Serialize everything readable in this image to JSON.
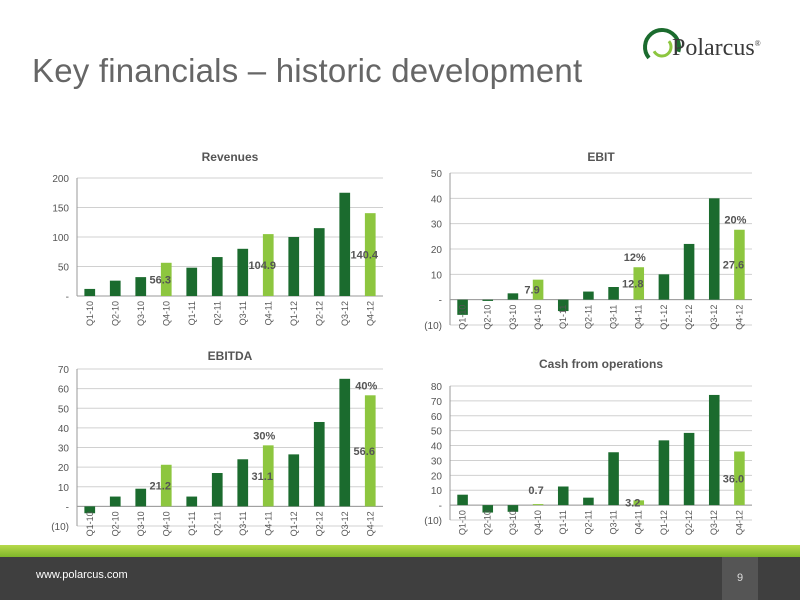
{
  "page": {
    "title": "Key financials – historic development",
    "logo_text": "Polarcus",
    "logo_mark": "®",
    "footer_url": "www.polarcus.com",
    "page_number": "9"
  },
  "colors": {
    "dark_green": "#1b6b2e",
    "light_green": "#8dc63f",
    "grid": "#d0d0d0",
    "footer_dark": "#3f3f3f"
  },
  "chart_data": [
    {
      "type": "bar",
      "title": "Revenues",
      "categories": [
        "Q1-10",
        "Q2-10",
        "Q3-10",
        "Q4-10",
        "Q1-11",
        "Q2-11",
        "Q3-11",
        "Q4-11",
        "Q1-12",
        "Q2-12",
        "Q3-12",
        "Q4-12"
      ],
      "values": [
        12,
        26,
        32,
        56.3,
        48,
        66,
        80,
        104.9,
        100,
        115,
        175,
        140.4
      ],
      "highlight": [
        3,
        7,
        11
      ],
      "ylim": [
        0,
        200
      ],
      "yticks": [
        0,
        50,
        100,
        150,
        200
      ],
      "ytick_labels": [
        "-",
        "50",
        "100",
        "150",
        "200"
      ],
      "value_labels": [
        {
          "index": 3,
          "text": "56.3"
        },
        {
          "index": 7,
          "text": "104.9"
        },
        {
          "index": 11,
          "text": "140.4"
        }
      ],
      "pct_labels": []
    },
    {
      "type": "bar",
      "title": "EBIT",
      "categories": [
        "Q1-10",
        "Q2-10",
        "Q3-10",
        "Q4-10",
        "Q1-11",
        "Q2-11",
        "Q3-11",
        "Q4-11",
        "Q1-12",
        "Q2-12",
        "Q3-12",
        "Q4-12"
      ],
      "values": [
        -6,
        -0.5,
        2.5,
        7.9,
        -4.5,
        3.2,
        5,
        12.8,
        10,
        22,
        40,
        27.6
      ],
      "highlight": [
        3,
        7,
        11
      ],
      "ylim": [
        -10,
        50
      ],
      "yticks": [
        -10,
        0,
        10,
        20,
        30,
        40,
        50
      ],
      "ytick_labels": [
        "(10)",
        "-",
        "10",
        "20",
        "30",
        "40",
        "50"
      ],
      "value_labels": [
        {
          "index": 3,
          "text": "7.9"
        },
        {
          "index": 7,
          "text": "12.8"
        },
        {
          "index": 11,
          "text": "27.6"
        }
      ],
      "pct_labels": [
        {
          "index": 7,
          "text": "12%"
        },
        {
          "index": 11,
          "text": "20%"
        }
      ]
    },
    {
      "type": "bar",
      "title": "EBITDA",
      "categories": [
        "Q1-10",
        "Q2-10",
        "Q3-10",
        "Q4-10",
        "Q1-11",
        "Q2-11",
        "Q3-11",
        "Q4-11",
        "Q1-12",
        "Q2-12",
        "Q3-12",
        "Q4-12"
      ],
      "values": [
        -3.5,
        5,
        9,
        21.2,
        5,
        17,
        24,
        31.1,
        26.5,
        43,
        65,
        56.6
      ],
      "highlight": [
        3,
        7,
        11
      ],
      "ylim": [
        -10,
        70
      ],
      "yticks": [
        -10,
        0,
        10,
        20,
        30,
        40,
        50,
        60,
        70
      ],
      "ytick_labels": [
        "(10)",
        "-",
        "10",
        "20",
        "30",
        "40",
        "50",
        "60",
        "70"
      ],
      "value_labels": [
        {
          "index": 3,
          "text": "21.2"
        },
        {
          "index": 7,
          "text": "31.1"
        },
        {
          "index": 11,
          "text": "56.6"
        }
      ],
      "pct_labels": [
        {
          "index": 7,
          "text": "30%"
        },
        {
          "index": 11,
          "text": "40%"
        }
      ]
    },
    {
      "type": "bar",
      "title": "Cash from operations",
      "categories": [
        "Q1-10",
        "Q2-10",
        "Q3-10",
        "Q4-10",
        "Q1-11",
        "Q2-11",
        "Q3-11",
        "Q4-11",
        "Q1-12",
        "Q2-12",
        "Q3-12",
        "Q4-12"
      ],
      "values": [
        7,
        -5,
        -4.5,
        0.7,
        12.5,
        5,
        35.5,
        3.2,
        43.5,
        48.5,
        74,
        36
      ],
      "highlight": [
        3,
        7,
        11
      ],
      "ylim": [
        -10,
        80
      ],
      "yticks": [
        -10,
        0,
        10,
        20,
        30,
        40,
        50,
        60,
        70,
        80
      ],
      "ytick_labels": [
        "(10)",
        "-",
        "10",
        "20",
        "30",
        "40",
        "50",
        "60",
        "70",
        "80"
      ],
      "value_labels": [
        {
          "index": 3,
          "text": "0.7"
        },
        {
          "index": 7,
          "text": "3.2"
        },
        {
          "index": 11,
          "text": "36.0"
        }
      ],
      "pct_labels": []
    }
  ]
}
